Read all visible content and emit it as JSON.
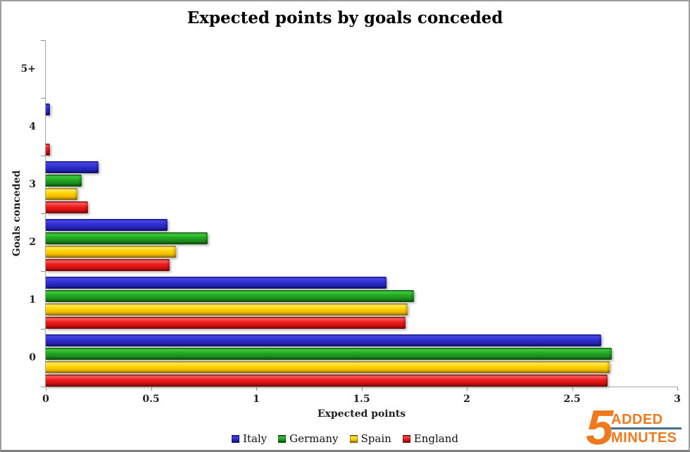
{
  "chart_data": {
    "type": "bar",
    "orientation": "horizontal",
    "title": "Expected points by goals conceded",
    "xlabel": "Expected points",
    "ylabel": "Goals conceded",
    "xlim": [
      0,
      3
    ],
    "x_ticks": [
      0,
      0.5,
      1,
      1.5,
      2,
      2.5,
      3
    ],
    "x_tick_labels": [
      "0",
      "0.5",
      "1",
      "1.5",
      "2",
      "2.5",
      "3"
    ],
    "categories": [
      "5+",
      "4",
      "3",
      "2",
      "1",
      "0"
    ],
    "series": [
      {
        "name": "Italy",
        "color": "#2B2BC8",
        "values": [
          0,
          0.02,
          0.25,
          0.58,
          1.62,
          2.64
        ]
      },
      {
        "name": "Germany",
        "color": "#22A822",
        "values": [
          0,
          0,
          0.17,
          0.77,
          1.75,
          2.69
        ]
      },
      {
        "name": "Spain",
        "color": "#FFD400",
        "values": [
          0,
          0,
          0.15,
          0.62,
          1.72,
          2.68
        ]
      },
      {
        "name": "England",
        "color": "#EE1C1C",
        "values": [
          0,
          0.02,
          0.2,
          0.59,
          1.71,
          2.67
        ]
      }
    ],
    "legend_position": "bottom",
    "grid": false,
    "axis_color": "#A6A6A6"
  },
  "logo": {
    "numeral": "5",
    "line1": "ADDED",
    "line2": "MINUTES",
    "orange": "#F0791E",
    "divider_color": "#456F8E"
  }
}
